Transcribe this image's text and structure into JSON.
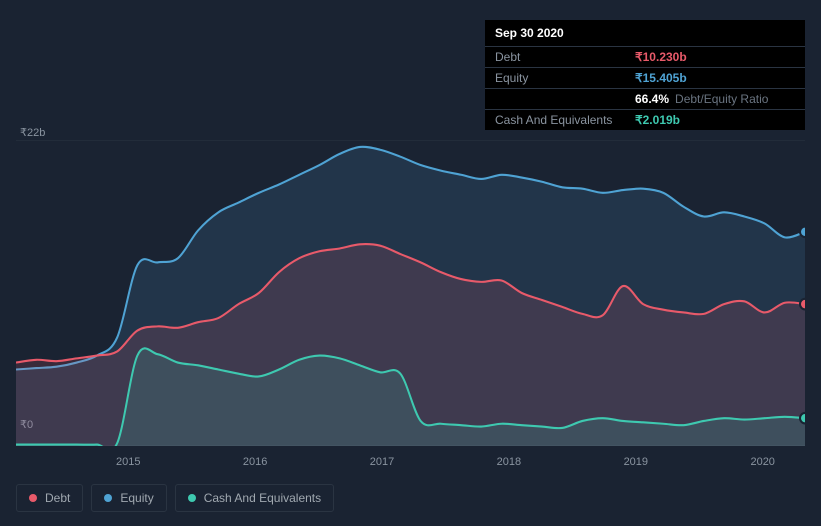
{
  "chart": {
    "type": "area",
    "background_color": "#1a2332",
    "grid_color": "#2a3442",
    "ylim": [
      0,
      22
    ],
    "y_ticks": [
      {
        "value": 0,
        "label": "₹0"
      },
      {
        "value": 22,
        "label": "₹22b"
      }
    ],
    "x_labels": [
      "2015",
      "2016",
      "2017",
      "2018",
      "2019",
      "2020"
    ],
    "label_fontsize": 11,
    "label_color": "#8a94a0",
    "series": {
      "debt": {
        "label": "Debt",
        "color": "#e85a6a",
        "fill_opacity": 0.15,
        "line_width": 2,
        "values": [
          6.0,
          6.2,
          6.1,
          6.3,
          6.5,
          6.8,
          8.3,
          8.6,
          8.5,
          8.9,
          9.2,
          10.2,
          11.0,
          12.5,
          13.5,
          14.0,
          14.2,
          14.5,
          14.4,
          13.8,
          13.2,
          12.5,
          12.0,
          11.8,
          11.9,
          11.0,
          10.5,
          10.0,
          9.5,
          9.4,
          11.5,
          10.2,
          9.8,
          9.6,
          9.5,
          10.2,
          10.4,
          9.6,
          10.3,
          10.2
        ]
      },
      "equity": {
        "label": "Equity",
        "color": "#4fa3d4",
        "fill_opacity": 0.15,
        "line_width": 2,
        "values": [
          5.5,
          5.6,
          5.7,
          6.0,
          6.5,
          7.8,
          13.0,
          13.2,
          13.5,
          15.5,
          16.8,
          17.5,
          18.2,
          18.8,
          19.5,
          20.2,
          21.0,
          21.5,
          21.3,
          20.8,
          20.2,
          19.8,
          19.5,
          19.2,
          19.5,
          19.3,
          19.0,
          18.6,
          18.5,
          18.2,
          18.4,
          18.5,
          18.2,
          17.2,
          16.5,
          16.8,
          16.5,
          16.0,
          15.0,
          15.4
        ]
      },
      "cash": {
        "label": "Cash And Equivalents",
        "color": "#3ec9b0",
        "fill_opacity": 0.15,
        "line_width": 2,
        "values": [
          0.1,
          0.1,
          0.1,
          0.1,
          0.1,
          0.2,
          6.5,
          6.6,
          6.0,
          5.8,
          5.5,
          5.2,
          5.0,
          5.5,
          6.2,
          6.5,
          6.3,
          5.8,
          5.3,
          5.2,
          1.8,
          1.6,
          1.5,
          1.4,
          1.6,
          1.5,
          1.4,
          1.3,
          1.8,
          2.0,
          1.8,
          1.7,
          1.6,
          1.5,
          1.8,
          2.0,
          1.9,
          2.0,
          2.1,
          2.0
        ]
      }
    },
    "marker_x_index": 39,
    "marker_radius": 5
  },
  "tooltip": {
    "date": "Sep 30 2020",
    "rows": [
      {
        "label": "Debt",
        "value": "₹10.230b",
        "class": "debt"
      },
      {
        "label": "Equity",
        "value": "₹15.405b",
        "class": "equity"
      },
      {
        "label": "",
        "value": "66.4%",
        "class": "ratio",
        "sublabel": "Debt/Equity Ratio"
      },
      {
        "label": "Cash And Equivalents",
        "value": "₹2.019b",
        "class": "cash"
      }
    ]
  },
  "legend": [
    {
      "label": "Debt",
      "class": "debt"
    },
    {
      "label": "Equity",
      "class": "equity"
    },
    {
      "label": "Cash And Equivalents",
      "class": "cash"
    }
  ]
}
